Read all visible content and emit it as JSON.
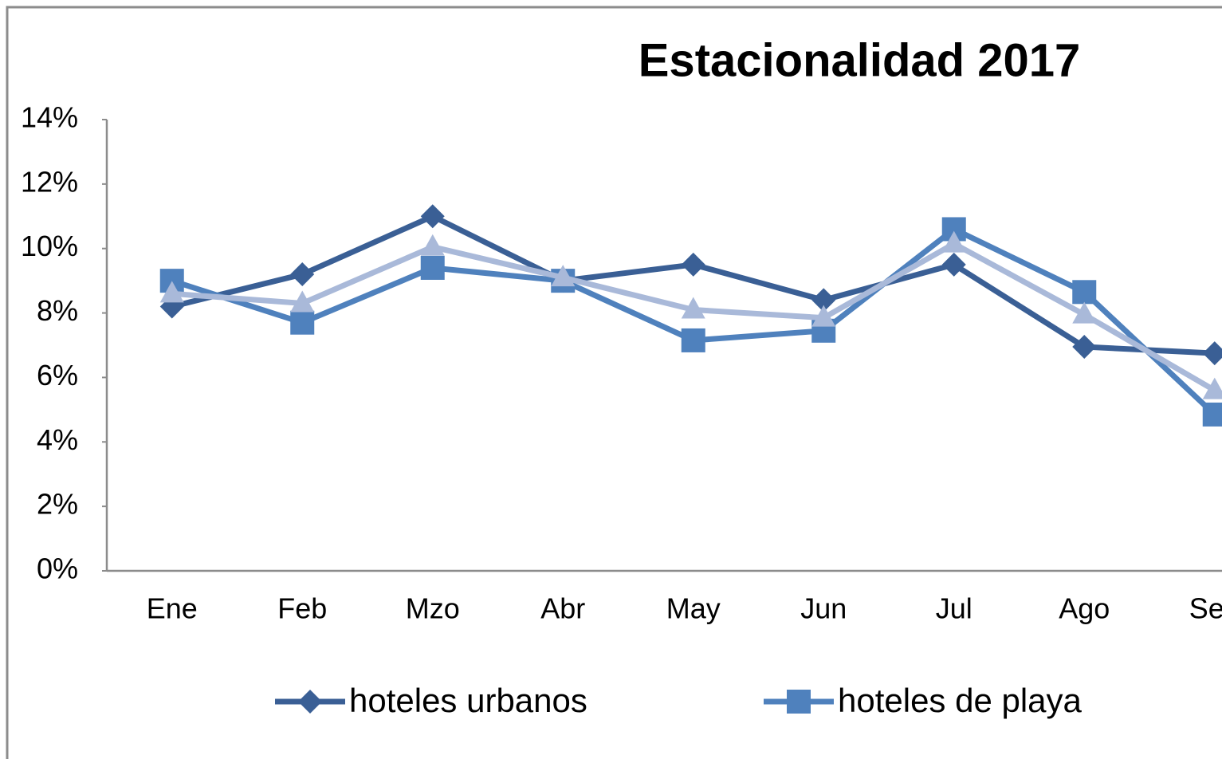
{
  "chart_data": {
    "type": "line",
    "title": "Estacionalidad  2017",
    "categories": [
      "Ene",
      "Feb",
      "Mzo",
      "Abr",
      "May",
      "Jun",
      "Jul",
      "Ago",
      "Sep"
    ],
    "series": [
      {
        "name": "hoteles urbanos",
        "color": "#3a5f95",
        "marker": "diamond",
        "values": [
          8.2,
          9.2,
          11.0,
          9.0,
          9.5,
          8.4,
          9.5,
          6.95,
          6.75
        ]
      },
      {
        "name": "hoteles de playa",
        "color": "#4f81bd",
        "marker": "square",
        "values": [
          9.0,
          7.7,
          9.4,
          9.0,
          7.15,
          7.45,
          10.6,
          8.65,
          4.85
        ]
      },
      {
        "color": "#a9b9d9",
        "marker": "triangle",
        "values": [
          8.6,
          8.3,
          10.05,
          9.1,
          8.1,
          7.85,
          10.15,
          7.95,
          5.6
        ]
      }
    ],
    "ylim": [
      0,
      14
    ],
    "yticks": [
      {
        "value": 0,
        "label": "0%"
      },
      {
        "value": 2,
        "label": "2%"
      },
      {
        "value": 4,
        "label": "4%"
      },
      {
        "value": 6,
        "label": "6%"
      },
      {
        "value": 8,
        "label": "8%"
      },
      {
        "value": 10,
        "label": "10%"
      },
      {
        "value": 12,
        "label": "12%"
      },
      {
        "value": 14,
        "label": "14%"
      }
    ],
    "grid": false
  }
}
